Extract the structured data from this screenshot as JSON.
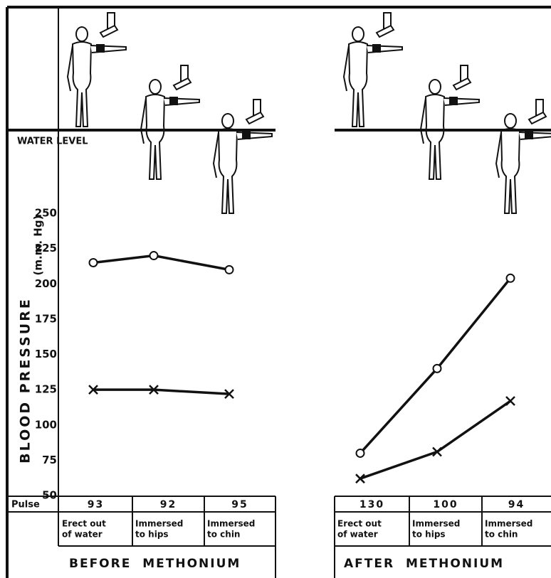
{
  "chart_data": [
    {
      "type": "line",
      "title": "BEFORE METHONIUM",
      "y_label": "BLOOD PRESSURE",
      "y_unit": "(m.m. Hg)",
      "annotation": "WATER LEVEL",
      "pulse_label": "Pulse",
      "categories": [
        [
          "Erect out",
          "of water"
        ],
        [
          "Immersed",
          "to hips"
        ],
        [
          "Immersed",
          "to chin"
        ]
      ],
      "pulse": [
        93,
        92,
        95
      ],
      "series": [
        {
          "marker": "circle",
          "color": "#111111",
          "values": [
            215,
            220,
            210
          ]
        },
        {
          "marker": "x",
          "color": "#111111",
          "values": [
            125,
            125,
            122
          ]
        }
      ],
      "ylim": [
        50,
        250
      ],
      "yticks": [
        50,
        75,
        100,
        125,
        150,
        175,
        200,
        225,
        250
      ]
    },
    {
      "type": "line",
      "title": "AFTER METHONIUM",
      "categories": [
        [
          "Erect out",
          "of water"
        ],
        [
          "Immersed",
          "to hips"
        ],
        [
          "Immersed",
          "to chin"
        ]
      ],
      "pulse": [
        130,
        100,
        94
      ],
      "series": [
        {
          "marker": "circle",
          "color": "#111111",
          "values": [
            80,
            140,
            204
          ]
        },
        {
          "marker": "x",
          "color": "#111111",
          "values": [
            62,
            81,
            117
          ]
        }
      ],
      "ylim": [
        50,
        250
      ]
    }
  ]
}
